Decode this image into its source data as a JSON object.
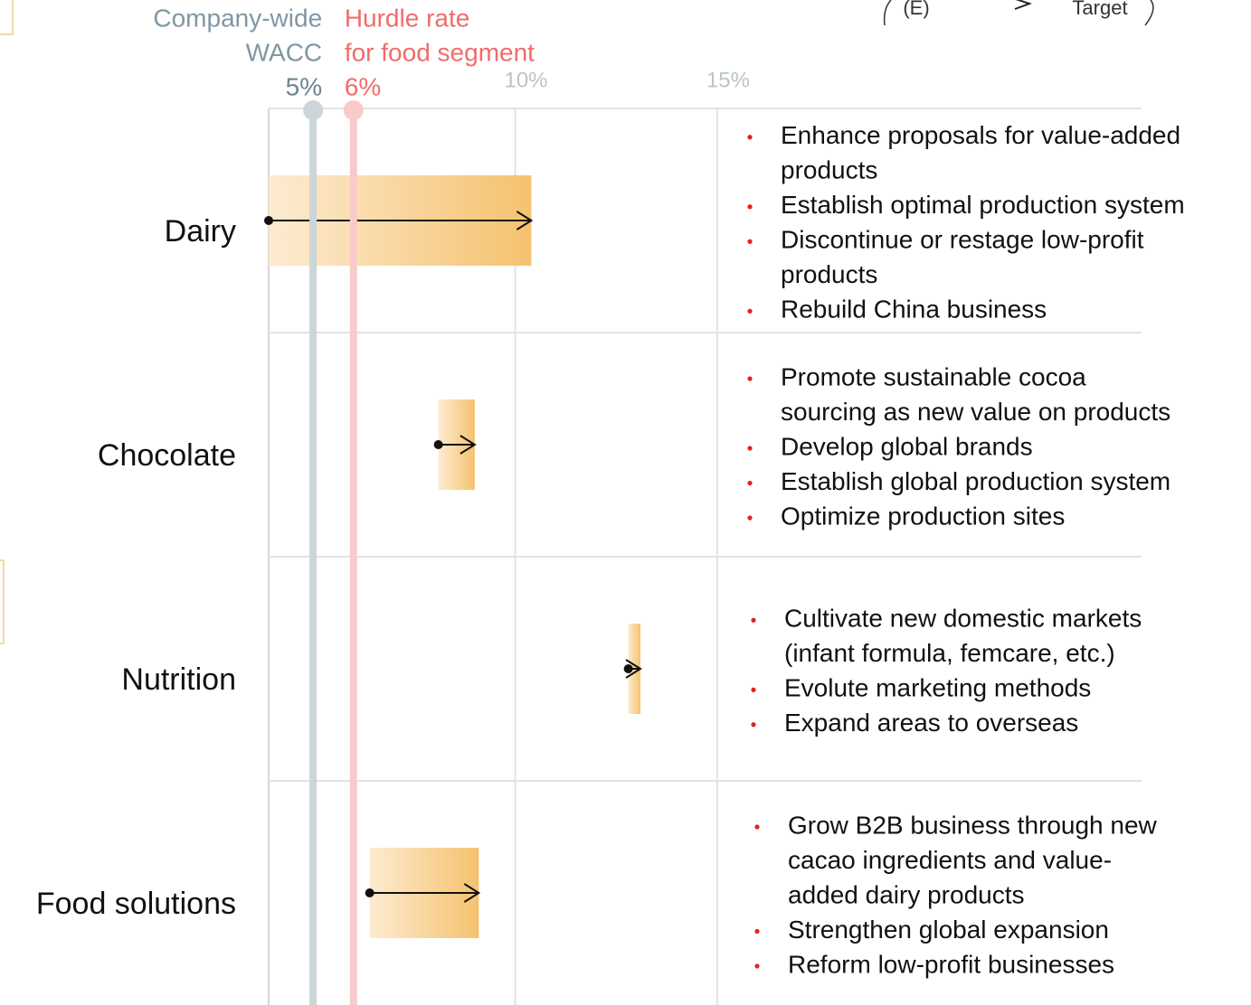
{
  "chart_data": {
    "type": "range",
    "categories": [
      "Dairy",
      "Chocolate",
      "Nutrition",
      "Food solutions"
    ],
    "start": [
      3.9,
      8.1,
      12.8,
      6.4
    ],
    "end": [
      10.4,
      9.0,
      13.1,
      9.1
    ],
    "xlim": [
      3.9,
      25.5
    ],
    "xticks": [
      {
        "value": 10,
        "label": "10%"
      },
      {
        "value": 15,
        "label": "15%"
      }
    ],
    "grid": true,
    "bar_colors": [
      "#fdebd0",
      "#f5c26f"
    ],
    "reference_lines": [
      {
        "lines": [
          "Company-wide",
          "WACC"
        ],
        "value": 5,
        "value_label": "5%",
        "color": "#ccd5da",
        "text_color": "#7f97a3"
      },
      {
        "lines": [
          "Hurdle rate",
          "for food segment"
        ],
        "value": 6,
        "value_label": "6%",
        "color": "#f9caca",
        "text_color": "#f26b6b"
      }
    ],
    "legend_fragments": [
      "(E)",
      "Target"
    ],
    "bullets": [
      [
        [
          "Enhance proposals for value-added",
          "products"
        ],
        [
          "Establish optimal production system"
        ],
        [
          "Discontinue or restage low-profit",
          "products"
        ],
        [
          "Rebuild China business"
        ]
      ],
      [
        [
          "Promote sustainable cocoa",
          "sourcing as new value on products"
        ],
        [
          "Develop global brands"
        ],
        [
          "Establish global production system"
        ],
        [
          "Optimize production sites"
        ]
      ],
      [
        [
          "Cultivate new domestic markets",
          "(infant formula, femcare, etc.)"
        ],
        [
          "Evolute marketing methods"
        ],
        [
          "Expand areas to overseas"
        ]
      ],
      [
        [
          "Grow B2B business through new",
          "cacao ingredients and value-",
          "added dairy products"
        ],
        [
          "Strengthen global expansion"
        ],
        [
          "Reform low-profit businesses"
        ]
      ]
    ]
  }
}
